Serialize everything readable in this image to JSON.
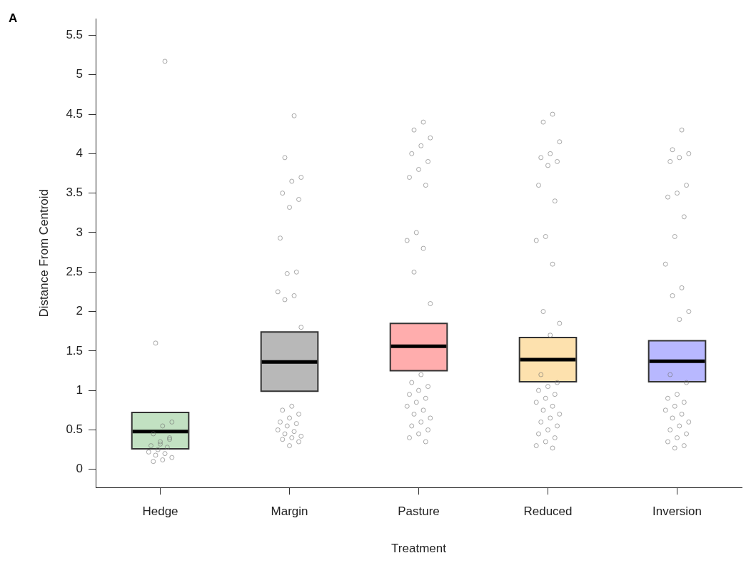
{
  "chart_data": {
    "type": "scatter",
    "title": "A",
    "xlabel": "Treatment",
    "ylabel": "Distance From Centroid",
    "categories": [
      "Hedge",
      "Margin",
      "Pasture",
      "Reduced",
      "Inversion"
    ],
    "ylim": [
      -0.23,
      5.71
    ],
    "yticks": [
      0,
      0.5,
      1,
      1.5,
      2,
      2.5,
      3,
      3.5,
      4,
      4.5,
      5,
      5.5
    ],
    "grid": false,
    "legend": false,
    "series": [
      {
        "type": "box",
        "color": "#333333",
        "colors": [
          "#b3d9b3",
          "#a6a6a6",
          "#ff9999",
          "#fcd99a",
          "#a6a6ff"
        ],
        "boxes": [
          {
            "low": 0.26,
            "q1": 0.26,
            "median": 0.48,
            "q3": 0.72,
            "high": 0.72
          },
          {
            "low": 0.99,
            "q1": 0.99,
            "median": 1.36,
            "q3": 1.74,
            "high": 1.74
          },
          {
            "low": 1.25,
            "q1": 1.25,
            "median": 1.56,
            "q3": 1.85,
            "high": 1.85
          },
          {
            "low": 1.11,
            "q1": 1.11,
            "median": 1.39,
            "q3": 1.67,
            "high": 1.67
          },
          {
            "low": 1.11,
            "q1": 1.11,
            "median": 1.37,
            "q3": 1.63,
            "high": 1.63
          }
        ]
      },
      {
        "color": "#707070",
        "marker": "circle",
        "x": [
          "Hedge",
          "Hedge",
          "Hedge",
          "Hedge",
          "Hedge",
          "Hedge",
          "Hedge",
          "Hedge",
          "Hedge",
          "Hedge",
          "Hedge",
          "Hedge",
          "Hedge",
          "Hedge",
          "Hedge",
          "Hedge",
          "Hedge",
          "Hedge",
          "Margin",
          "Margin",
          "Margin",
          "Margin",
          "Margin",
          "Margin",
          "Margin",
          "Margin",
          "Margin",
          "Margin",
          "Margin",
          "Margin",
          "Margin",
          "Margin",
          "Margin",
          "Margin",
          "Margin",
          "Margin",
          "Margin",
          "Margin",
          "Margin",
          "Margin",
          "Margin",
          "Margin",
          "Margin",
          "Margin",
          "Margin",
          "Margin",
          "Margin",
          "Pasture",
          "Pasture",
          "Pasture",
          "Pasture",
          "Pasture",
          "Pasture",
          "Pasture",
          "Pasture",
          "Pasture",
          "Pasture",
          "Pasture",
          "Pasture",
          "Pasture",
          "Pasture",
          "Pasture",
          "Pasture",
          "Pasture",
          "Pasture",
          "Pasture",
          "Pasture",
          "Pasture",
          "Pasture",
          "Pasture",
          "Pasture",
          "Pasture",
          "Pasture",
          "Pasture",
          "Pasture",
          "Pasture",
          "Pasture",
          "Pasture",
          "Reduced",
          "Reduced",
          "Reduced",
          "Reduced",
          "Reduced",
          "Reduced",
          "Reduced",
          "Reduced",
          "Reduced",
          "Reduced",
          "Reduced",
          "Reduced",
          "Reduced",
          "Reduced",
          "Reduced",
          "Reduced",
          "Reduced",
          "Reduced",
          "Reduced",
          "Reduced",
          "Reduced",
          "Reduced",
          "Reduced",
          "Reduced",
          "Reduced",
          "Reduced",
          "Reduced",
          "Reduced",
          "Reduced",
          "Reduced",
          "Reduced",
          "Reduced",
          "Reduced",
          "Reduced",
          "Inversion",
          "Inversion",
          "Inversion",
          "Inversion",
          "Inversion",
          "Inversion",
          "Inversion",
          "Inversion",
          "Inversion",
          "Inversion",
          "Inversion",
          "Inversion",
          "Inversion",
          "Inversion",
          "Inversion",
          "Inversion",
          "Inversion",
          "Inversion",
          "Inversion",
          "Inversion",
          "Inversion",
          "Inversion",
          "Inversion",
          "Inversion",
          "Inversion",
          "Inversion",
          "Inversion",
          "Inversion",
          "Inversion",
          "Inversion",
          "Inversion",
          "Inversion"
        ],
        "values": [
          5.17,
          1.6,
          0.6,
          0.55,
          0.45,
          0.4,
          0.35,
          0.3,
          0.28,
          0.25,
          0.22,
          0.2,
          0.18,
          0.15,
          0.12,
          0.1,
          0.38,
          0.32,
          4.48,
          3.95,
          3.7,
          3.65,
          3.5,
          3.42,
          3.32,
          2.93,
          2.5,
          2.48,
          2.25,
          2.2,
          2.15,
          1.8,
          0.8,
          0.75,
          0.7,
          0.65,
          0.6,
          0.58,
          0.55,
          0.5,
          0.48,
          0.45,
          0.42,
          0.4,
          0.38,
          0.35,
          0.3,
          4.4,
          4.3,
          4.2,
          4.1,
          4.0,
          3.9,
          3.8,
          3.7,
          3.6,
          3.0,
          2.9,
          2.8,
          2.5,
          2.1,
          1.2,
          1.1,
          1.05,
          1.0,
          0.95,
          0.9,
          0.85,
          0.8,
          0.75,
          0.7,
          0.65,
          0.6,
          0.55,
          0.5,
          0.45,
          0.4,
          0.35,
          4.5,
          4.4,
          4.15,
          4.0,
          3.95,
          3.9,
          3.85,
          3.6,
          3.4,
          2.95,
          2.9,
          2.6,
          2.0,
          1.85,
          1.7,
          1.2,
          1.1,
          1.05,
          1.0,
          0.95,
          0.9,
          0.85,
          0.8,
          0.75,
          0.7,
          0.65,
          0.6,
          0.55,
          0.5,
          0.45,
          0.4,
          0.35,
          0.3,
          0.27,
          4.3,
          4.05,
          4.0,
          3.95,
          3.9,
          3.6,
          3.5,
          3.45,
          3.2,
          2.95,
          2.6,
          2.3,
          2.2,
          2.0,
          1.9,
          1.2,
          1.1,
          0.95,
          0.9,
          0.85,
          0.8,
          0.75,
          0.7,
          0.65,
          0.6,
          0.55,
          0.5,
          0.45,
          0.4,
          0.35,
          0.3,
          0.27
        ]
      }
    ]
  }
}
